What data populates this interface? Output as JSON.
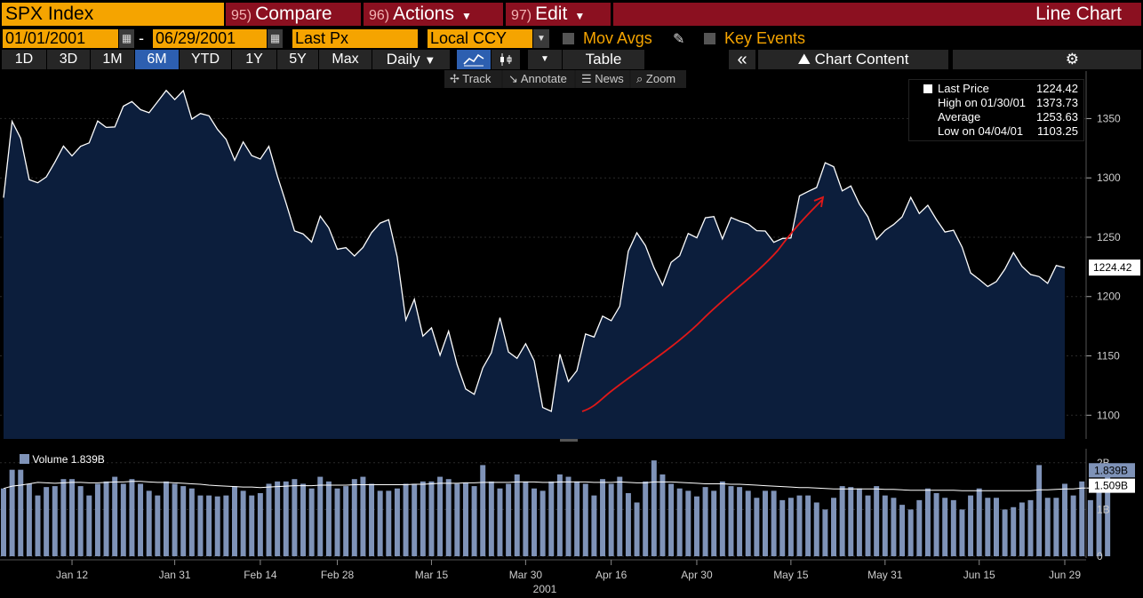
{
  "header": {
    "ticker": "SPX Index",
    "compare": {
      "num": "95)",
      "label": "Compare"
    },
    "actions": {
      "num": "96)",
      "label": "Actions"
    },
    "edit": {
      "num": "97)",
      "label": "Edit"
    },
    "chart_type": "Line Chart"
  },
  "options": {
    "start_date": "01/01/2001",
    "dash": "-",
    "end_date": "06/29/2001",
    "field": "Last Px",
    "currency": "Local CCY",
    "mov_avgs": "Mov Avgs",
    "key_events": "Key Events"
  },
  "periods": [
    "1D",
    "3D",
    "1M",
    "6M",
    "YTD",
    "1Y",
    "5Y",
    "Max"
  ],
  "active_period": "6M",
  "frequency": "Daily",
  "table_label": "Table",
  "chart_content_label": "Chart Content",
  "toolbar": {
    "track": "Track",
    "annotate": "Annotate",
    "news": "News",
    "zoom": "Zoom"
  },
  "legend": {
    "last_label": "Last Price",
    "last_value": "1224.42",
    "high_label": "High on 01/30/01",
    "high_value": "1373.73",
    "avg_label": "Average",
    "avg_value": "1253.63",
    "low_label": "Low on 04/04/01",
    "low_value": "1103.25"
  },
  "volume_legend": {
    "label": "Volume",
    "value": "1.839B"
  },
  "colors": {
    "accent": "#f5a400",
    "header_red": "#8b1020",
    "price_line": "#ffffff",
    "area_fill": "#0c1e3c",
    "volume_bar": "#7f93b8",
    "annotation_arrow": "#e01818",
    "active_tab": "#2d5fb0"
  },
  "chart_data": [
    {
      "type": "area",
      "ylim": [
        1080,
        1390
      ],
      "yticks": [
        1100,
        1150,
        1200,
        1250,
        1300,
        1350
      ],
      "x": [
        "01/02/01",
        "01/03/01",
        "01/04/01",
        "01/05/01",
        "01/08/01",
        "01/09/01",
        "01/10/01",
        "01/11/01",
        "01/12/01",
        "01/16/01",
        "01/17/01",
        "01/18/01",
        "01/19/01",
        "01/22/01",
        "01/23/01",
        "01/24/01",
        "01/25/01",
        "01/26/01",
        "01/29/01",
        "01/30/01",
        "01/31/01",
        "02/01/01",
        "02/02/01",
        "02/05/01",
        "02/06/01",
        "02/07/01",
        "02/08/01",
        "02/09/01",
        "02/12/01",
        "02/13/01",
        "02/14/01",
        "02/15/01",
        "02/16/01",
        "02/20/01",
        "02/21/01",
        "02/22/01",
        "02/23/01",
        "02/26/01",
        "02/27/01",
        "02/28/01",
        "03/01/01",
        "03/02/01",
        "03/05/01",
        "03/06/01",
        "03/07/01",
        "03/08/01",
        "03/09/01",
        "03/12/01",
        "03/13/01",
        "03/14/01",
        "03/15/01",
        "03/16/01",
        "03/19/01",
        "03/20/01",
        "03/21/01",
        "03/22/01",
        "03/23/01",
        "03/26/01",
        "03/27/01",
        "03/28/01",
        "03/29/01",
        "03/30/01",
        "04/02/01",
        "04/03/01",
        "04/04/01",
        "04/05/01",
        "04/06/01",
        "04/09/01",
        "04/10/01",
        "04/11/01",
        "04/12/01",
        "04/16/01",
        "04/17/01",
        "04/18/01",
        "04/19/01",
        "04/20/01",
        "04/23/01",
        "04/24/01",
        "04/25/01",
        "04/26/01",
        "04/27/01",
        "04/30/01",
        "05/01/01",
        "05/02/01",
        "05/03/01",
        "05/04/01",
        "05/07/01",
        "05/08/01",
        "05/09/01",
        "05/10/01",
        "05/11/01",
        "05/14/01",
        "05/15/01",
        "05/16/01",
        "05/17/01",
        "05/18/01",
        "05/21/01",
        "05/22/01",
        "05/23/01",
        "05/24/01",
        "05/25/01",
        "05/29/01",
        "05/30/01",
        "05/31/01",
        "06/01/01",
        "06/04/01",
        "06/05/01",
        "06/06/01",
        "06/07/01",
        "06/08/01",
        "06/11/01",
        "06/12/01",
        "06/13/01",
        "06/14/01",
        "06/15/01",
        "06/18/01",
        "06/19/01",
        "06/20/01",
        "06/21/01",
        "06/22/01",
        "06/25/01",
        "06/26/01",
        "06/27/01",
        "06/28/01",
        "06/29/01"
      ],
      "series": [
        {
          "values": [
            1283.3,
            1347.6,
            1333.3,
            1298.4,
            1295.9,
            1300.8,
            1313.3,
            1326.8,
            1318.6,
            1326.6,
            1329.5,
            1347.9,
            1342.5,
            1342.9,
            1360.4,
            1364.3,
            1357.5,
            1354.9,
            1364.2,
            1373.7,
            1366.0,
            1373.5,
            1349.5,
            1354.3,
            1352.3,
            1340.9,
            1332.5,
            1314.8,
            1330.3,
            1318.8,
            1315.9,
            1326.6,
            1301.5,
            1278.9,
            1255.3,
            1252.8,
            1245.9,
            1267.7,
            1257.9,
            1239.9,
            1241.2,
            1234.2,
            1241.4,
            1253.8,
            1261.9,
            1264.7,
            1233.4,
            1180.2,
            1197.7,
            1166.7,
            1173.6,
            1150.5,
            1170.8,
            1142.6,
            1122.1,
            1117.6,
            1139.8,
            1152.7,
            1182.2,
            1153.3,
            1147.9,
            1160.3,
            1145.9,
            1106.5,
            1103.3,
            1151.4,
            1128.4,
            1137.6,
            1168.4,
            1165.9,
            1183.5,
            1179.7,
            1191.8,
            1238.2,
            1253.7,
            1242.9,
            1224.4,
            1209.5,
            1228.8,
            1234.5,
            1253.1,
            1249.5,
            1266.4,
            1267.4,
            1248.6,
            1266.6,
            1263.5,
            1261.2,
            1255.5,
            1255.2,
            1245.7,
            1248.9,
            1249.4,
            1284.9,
            1288.5,
            1291.9,
            1312.8,
            1309.4,
            1289.1,
            1293.2,
            1277.9,
            1267.1,
            1248.1,
            1255.8,
            1260.7,
            1267.1,
            1283.6,
            1270.0,
            1276.9,
            1264.9,
            1254.4,
            1255.9,
            1241.6,
            1219.9,
            1214.4,
            1208.4,
            1212.6,
            1223.1,
            1237.0,
            1225.4,
            1218.6,
            1216.8,
            1211.1,
            1226.2,
            1224.4
          ]
        }
      ]
    },
    {
      "type": "bar",
      "ylim": [
        0,
        2.3
      ],
      "yticks": [
        "0",
        "1B",
        "2B"
      ],
      "x_tick_labels": [
        "Jan 12",
        "Jan 31",
        "Feb 14",
        "Feb 28",
        "Mar 15",
        "Mar 30",
        "Apr 16",
        "Apr 30",
        "May 15",
        "May 31",
        "Jun 15",
        "Jun 29"
      ],
      "year_label": "2001",
      "series": [
        {
          "name": "Volume",
          "values": [
            1.45,
            1.85,
            1.85,
            1.55,
            1.3,
            1.48,
            1.5,
            1.65,
            1.65,
            1.5,
            1.3,
            1.55,
            1.6,
            1.7,
            1.55,
            1.65,
            1.55,
            1.4,
            1.3,
            1.6,
            1.55,
            1.5,
            1.45,
            1.3,
            1.3,
            1.28,
            1.3,
            1.5,
            1.4,
            1.3,
            1.35,
            1.55,
            1.6,
            1.6,
            1.65,
            1.55,
            1.45,
            1.7,
            1.6,
            1.45,
            1.5,
            1.65,
            1.7,
            1.55,
            1.4,
            1.4,
            1.45,
            1.55,
            1.55,
            1.6,
            1.6,
            1.7,
            1.65,
            1.55,
            1.58,
            1.5,
            1.95,
            1.6,
            1.45,
            1.55,
            1.75,
            1.6,
            1.45,
            1.4,
            1.6,
            1.75,
            1.7,
            1.6,
            1.55,
            1.3,
            1.65,
            1.55,
            1.7,
            1.35,
            1.15,
            1.6,
            2.05,
            1.75,
            1.55,
            1.45,
            1.4,
            1.28,
            1.48,
            1.4,
            1.6,
            1.5,
            1.48,
            1.4,
            1.25,
            1.4,
            1.4,
            1.2,
            1.25,
            1.3,
            1.3,
            1.15,
            1.0,
            1.25,
            1.5,
            1.48,
            1.45,
            1.3,
            1.5,
            1.3,
            1.25,
            1.1,
            1.0,
            1.2,
            1.45,
            1.35,
            1.25,
            1.2,
            1.0,
            1.3,
            1.45,
            1.25,
            1.25,
            1.0,
            1.05,
            1.15,
            1.2,
            1.95,
            1.25,
            1.25,
            1.55,
            1.3,
            1.6,
            1.2,
            1.4,
            1.7
          ]
        },
        {
          "name": "Average",
          "values": [
            1.45,
            1.5,
            1.52,
            1.55,
            1.58,
            1.57,
            1.56,
            1.57,
            1.58,
            1.58,
            1.57,
            1.57,
            1.58,
            1.59,
            1.59,
            1.6,
            1.6,
            1.59,
            1.58,
            1.58,
            1.57,
            1.56,
            1.55,
            1.54,
            1.52,
            1.51,
            1.5,
            1.49,
            1.48,
            1.48,
            1.47,
            1.48,
            1.49,
            1.5,
            1.51,
            1.51,
            1.51,
            1.52,
            1.52,
            1.52,
            1.52,
            1.53,
            1.53,
            1.53,
            1.53,
            1.53,
            1.53,
            1.53,
            1.54,
            1.54,
            1.55,
            1.56,
            1.56,
            1.56,
            1.57,
            1.57,
            1.58,
            1.58,
            1.58,
            1.58,
            1.59,
            1.59,
            1.59,
            1.58,
            1.58,
            1.59,
            1.59,
            1.59,
            1.59,
            1.58,
            1.58,
            1.58,
            1.59,
            1.58,
            1.57,
            1.57,
            1.59,
            1.59,
            1.59,
            1.58,
            1.57,
            1.56,
            1.55,
            1.55,
            1.55,
            1.54,
            1.54,
            1.53,
            1.52,
            1.51,
            1.5,
            1.49,
            1.48,
            1.47,
            1.47,
            1.46,
            1.45,
            1.44,
            1.44,
            1.44,
            1.44,
            1.44,
            1.44,
            1.43,
            1.43,
            1.42,
            1.41,
            1.41,
            1.41,
            1.41,
            1.41,
            1.41,
            1.4,
            1.4,
            1.4,
            1.4,
            1.4,
            1.4,
            1.4,
            1.4,
            1.4,
            1.42,
            1.42,
            1.43,
            1.44,
            1.44,
            1.46,
            1.46,
            1.48,
            1.51
          ]
        }
      ]
    }
  ]
}
